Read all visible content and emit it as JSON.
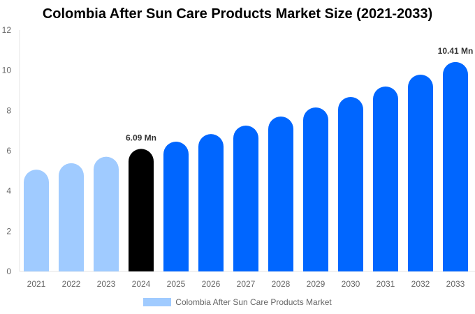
{
  "chart_data": {
    "type": "bar",
    "title": "Colombia After Sun Care Products Market Size (2021-2033)",
    "categories": [
      "2021",
      "2022",
      "2023",
      "2024",
      "2025",
      "2026",
      "2027",
      "2028",
      "2029",
      "2030",
      "2031",
      "2032",
      "2033"
    ],
    "series": [
      {
        "name": "Colombia After Sun Care Products Market",
        "values": [
          5.06,
          5.38,
          5.7,
          6.09,
          6.45,
          6.83,
          7.25,
          7.7,
          8.15,
          8.67,
          9.19,
          9.78,
          10.41
        ]
      }
    ],
    "data_labels": [
      {
        "category": "2024",
        "text": "6.09 Mn"
      },
      {
        "category": "2033",
        "text": "10.41 Mn"
      }
    ],
    "ylim": [
      0,
      12
    ],
    "yticks": [
      0,
      2,
      4,
      6,
      8,
      10,
      12
    ],
    "xlabel": "",
    "ylabel": "",
    "grid": false,
    "legend_position": "bottom",
    "colors": {
      "historical": "#a0cbff",
      "current": "#000000",
      "forecast": "#0066ff"
    }
  }
}
